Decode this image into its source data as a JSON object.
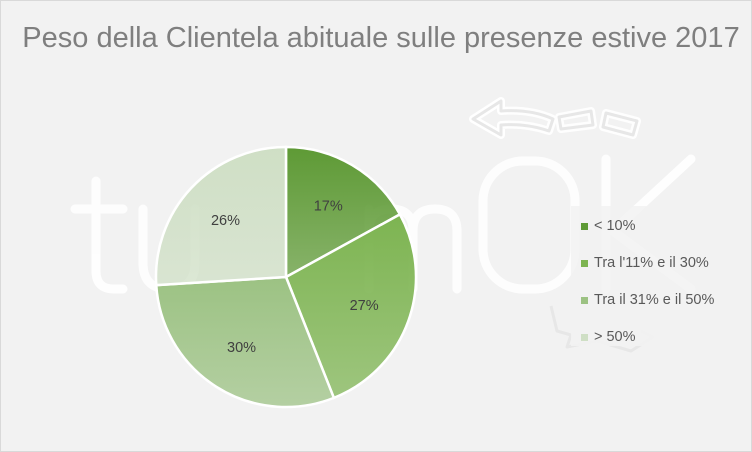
{
  "chart_data": {
    "type": "pie",
    "title": "Peso della Clientela abituale sulle presenze estive 2017",
    "categories": [
      "< 10%",
      "Tra l'11% e il 30%",
      "Tra il 31% e il 50%",
      "> 50%"
    ],
    "values": [
      17,
      27,
      30,
      26
    ],
    "data_labels": [
      "17%",
      "27%",
      "30%",
      "26%"
    ],
    "colors": [
      "#5e9a35",
      "#7db451",
      "#9cc283",
      "#cfdfc5"
    ],
    "legend_position": "right",
    "watermark": "turismOK"
  }
}
